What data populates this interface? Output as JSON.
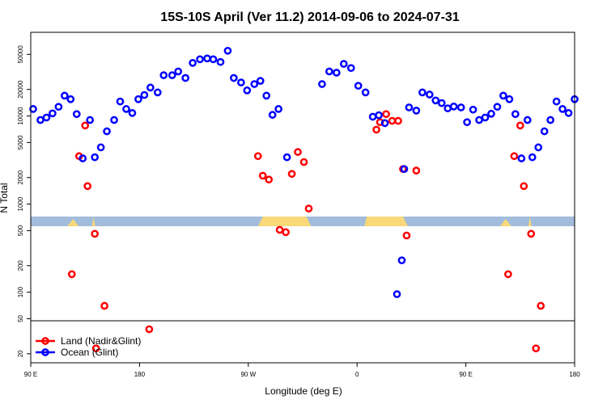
{
  "chart_data": {
    "type": "scatter",
    "title": "15S-10S April (Ver 11.2)   2014-09-06 to 2024-07-31",
    "xlabel": "Longitude (deg E)",
    "ylabel": "N Total",
    "y_scale": "log",
    "x_ticks": [
      {
        "value": 90,
        "label": "90 E"
      },
      {
        "value": 180,
        "label": "180"
      },
      {
        "value": 270,
        "label": "90 W"
      },
      {
        "value": 360,
        "label": "0"
      },
      {
        "value": 450,
        "label": "90 E"
      },
      {
        "value": 540,
        "label": "180"
      }
    ],
    "y_ticks": [
      {
        "value": 20,
        "label": "20"
      },
      {
        "value": 50,
        "label": "50"
      },
      {
        "value": 100,
        "label": "100"
      },
      {
        "value": 200,
        "label": "200"
      },
      {
        "value": 500,
        "label": "500"
      },
      {
        "value": 1000,
        "label": "1000"
      },
      {
        "value": 2000,
        "label": "2000"
      },
      {
        "value": 5000,
        "label": "5000"
      },
      {
        "value": 10000,
        "label": "10000"
      },
      {
        "value": 20000,
        "label": "20000"
      },
      {
        "value": 50000,
        "label": "50000"
      }
    ],
    "legend": {
      "placement": "bottom-left",
      "entries": [
        {
          "label": "Land (Nadir&Glint)",
          "color": "#ff0000"
        },
        {
          "label": "Ocean (Glint)",
          "color": "#0000ff"
        }
      ]
    },
    "map_strip": {
      "ocean_color": "#a2bcdc",
      "land_color": "#f8d878"
    },
    "series": [
      {
        "name": "Land (Nadir&Glint)",
        "color": "#ff0000",
        "points": [
          [
            124,
            160
          ],
          [
            130,
            3500
          ],
          [
            135,
            7800
          ],
          [
            137,
            1600
          ],
          [
            143,
            460
          ],
          [
            144,
            23
          ],
          [
            151,
            70
          ],
          [
            188,
            38
          ],
          [
            278,
            3500
          ],
          [
            282,
            2100
          ],
          [
            287,
            1900
          ],
          [
            296,
            510
          ],
          [
            301,
            480
          ],
          [
            306,
            2200
          ],
          [
            311,
            3900
          ],
          [
            316,
            3000
          ],
          [
            320,
            890
          ],
          [
            376,
            7000
          ],
          [
            379,
            8500
          ],
          [
            384,
            10500
          ],
          [
            389,
            8800
          ],
          [
            394,
            8800
          ],
          [
            398,
            2500
          ],
          [
            401,
            440
          ],
          [
            409,
            2400
          ],
          [
            485,
            160
          ],
          [
            490,
            3500
          ],
          [
            495,
            7800
          ],
          [
            498,
            1600
          ],
          [
            504,
            460
          ],
          [
            508,
            23
          ],
          [
            512,
            70
          ]
        ]
      },
      {
        "name": "Ocean (Glint)",
        "color": "#0000ff",
        "points": [
          [
            92,
            12000
          ],
          [
            98,
            9000
          ],
          [
            103,
            9600
          ],
          [
            108,
            10700
          ],
          [
            113,
            12700
          ],
          [
            118,
            17000
          ],
          [
            123,
            15500
          ],
          [
            128,
            10500
          ],
          [
            133,
            3300
          ],
          [
            139,
            9000
          ],
          [
            143,
            3400
          ],
          [
            148,
            4400
          ],
          [
            153,
            6700
          ],
          [
            159,
            9000
          ],
          [
            164,
            14600
          ],
          [
            169,
            12000
          ],
          [
            174,
            10800
          ],
          [
            179,
            15500
          ],
          [
            184,
            17300
          ],
          [
            189,
            21000
          ],
          [
            195,
            18500
          ],
          [
            200,
            29000
          ],
          [
            207,
            29000
          ],
          [
            212,
            32000
          ],
          [
            218,
            27000
          ],
          [
            224,
            40000
          ],
          [
            230,
            44000
          ],
          [
            236,
            45000
          ],
          [
            241,
            44000
          ],
          [
            247,
            41000
          ],
          [
            253,
            55000
          ],
          [
            258,
            27000
          ],
          [
            264,
            24000
          ],
          [
            269,
            19500
          ],
          [
            275,
            23000
          ],
          [
            280,
            25000
          ],
          [
            285,
            17000
          ],
          [
            290,
            10300
          ],
          [
            295,
            12000
          ],
          [
            302,
            3400
          ],
          [
            331,
            23000
          ],
          [
            337,
            32000
          ],
          [
            343,
            31000
          ],
          [
            349,
            39000
          ],
          [
            355,
            35000
          ],
          [
            361,
            22000
          ],
          [
            367,
            18500
          ],
          [
            373,
            9800
          ],
          [
            378,
            10200
          ],
          [
            383,
            8300
          ],
          [
            393,
            95
          ],
          [
            397,
            230
          ],
          [
            399,
            2500
          ],
          [
            403,
            12500
          ],
          [
            409,
            11500
          ],
          [
            414,
            18500
          ],
          [
            420,
            17500
          ],
          [
            425,
            15000
          ],
          [
            430,
            14000
          ],
          [
            435,
            12200
          ],
          [
            440,
            12800
          ],
          [
            446,
            12500
          ],
          [
            451,
            8500
          ],
          [
            456,
            11800
          ],
          [
            461,
            9000
          ],
          [
            466,
            9600
          ],
          [
            471,
            10600
          ],
          [
            476,
            12700
          ],
          [
            481,
            17000
          ],
          [
            486,
            15500
          ],
          [
            491,
            10500
          ],
          [
            496,
            3300
          ],
          [
            501,
            9000
          ],
          [
            505,
            3400
          ],
          [
            510,
            4400
          ],
          [
            515,
            6700
          ],
          [
            520,
            9000
          ],
          [
            525,
            14600
          ],
          [
            530,
            12000
          ],
          [
            535,
            10800
          ],
          [
            540,
            15500
          ]
        ]
      }
    ]
  }
}
